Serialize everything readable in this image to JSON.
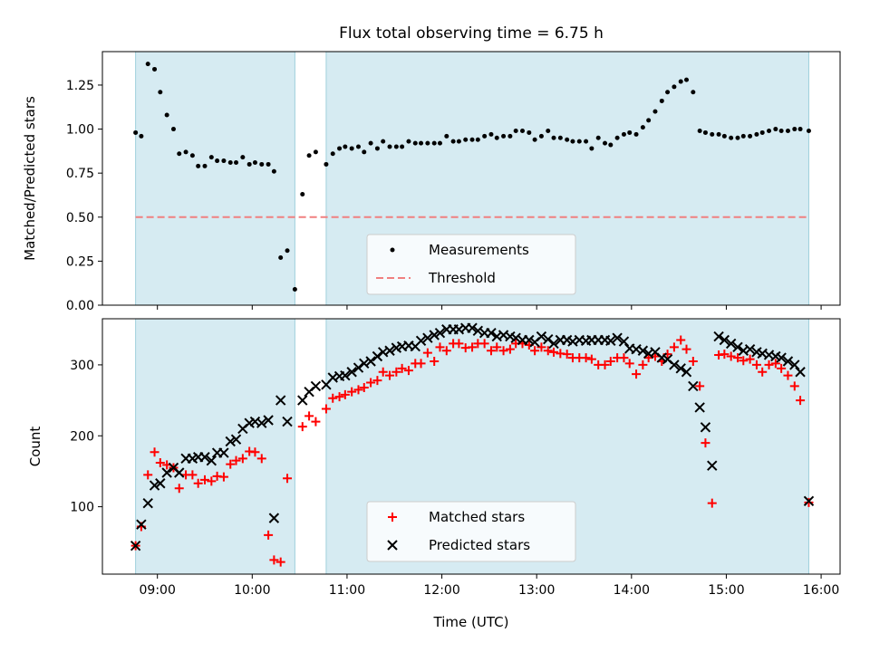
{
  "chart_data": [
    {
      "type": "scatter",
      "title": "Flux total observing time = 6.75 h",
      "xlabel": "",
      "ylabel": "Matched/Predicted stars",
      "xlim": [
        8.42,
        16.2
      ],
      "ylim": [
        0,
        1.44
      ],
      "yticks": [
        0,
        0.25,
        0.5,
        0.75,
        1.0,
        1.25
      ],
      "ytick_labels": [
        "0.00",
        "0.25",
        "0.50",
        "0.75",
        "1.00",
        "1.25"
      ],
      "shaded_ranges": [
        [
          8.77,
          10.45
        ],
        [
          10.78,
          15.87
        ]
      ],
      "shade_color": "#add8e6",
      "legend": [
        "Measurements",
        "Threshold"
      ],
      "legend_loc": "lower center",
      "threshold": 0.5,
      "threshold_color": "#f08080",
      "series": [
        {
          "name": "Measurements",
          "x": [
            8.77,
            8.83,
            8.9,
            8.97,
            9.03,
            9.1,
            9.17,
            9.23,
            9.3,
            9.37,
            9.43,
            9.5,
            9.57,
            9.63,
            9.7,
            9.77,
            9.83,
            9.9,
            9.97,
            10.03,
            10.1,
            10.17,
            10.23,
            10.3,
            10.37,
            10.45,
            10.53,
            10.6,
            10.67,
            10.78,
            10.85,
            10.92,
            10.98,
            11.05,
            11.12,
            11.18,
            11.25,
            11.32,
            11.38,
            11.45,
            11.52,
            11.58,
            11.65,
            11.72,
            11.78,
            11.85,
            11.92,
            11.98,
            12.05,
            12.12,
            12.18,
            12.25,
            12.32,
            12.38,
            12.45,
            12.52,
            12.58,
            12.65,
            12.72,
            12.78,
            12.85,
            12.92,
            12.98,
            13.05,
            13.12,
            13.18,
            13.25,
            13.32,
            13.38,
            13.45,
            13.52,
            13.58,
            13.65,
            13.72,
            13.78,
            13.85,
            13.92,
            13.98,
            14.05,
            14.12,
            14.18,
            14.25,
            14.32,
            14.38,
            14.45,
            14.52,
            14.58,
            14.65,
            14.72,
            14.78,
            14.85,
            14.92,
            14.98,
            15.05,
            15.12,
            15.18,
            15.25,
            15.32,
            15.38,
            15.45,
            15.52,
            15.58,
            15.65,
            15.72,
            15.78,
            15.87
          ],
          "y": [
            0.98,
            0.96,
            1.37,
            1.34,
            1.21,
            1.08,
            1.0,
            0.86,
            0.87,
            0.85,
            0.79,
            0.79,
            0.84,
            0.82,
            0.82,
            0.81,
            0.81,
            0.84,
            0.8,
            0.81,
            0.8,
            0.8,
            0.76,
            0.27,
            0.31,
            0.09,
            0.63,
            0.85,
            0.87,
            0.8,
            0.86,
            0.89,
            0.9,
            0.89,
            0.9,
            0.87,
            0.92,
            0.89,
            0.93,
            0.9,
            0.9,
            0.9,
            0.93,
            0.92,
            0.92,
            0.92,
            0.92,
            0.92,
            0.96,
            0.93,
            0.93,
            0.94,
            0.94,
            0.94,
            0.96,
            0.97,
            0.95,
            0.96,
            0.96,
            0.99,
            0.99,
            0.98,
            0.94,
            0.96,
            0.99,
            0.95,
            0.95,
            0.94,
            0.93,
            0.93,
            0.93,
            0.89,
            0.95,
            0.92,
            0.91,
            0.95,
            0.97,
            0.98,
            0.97,
            1.01,
            1.05,
            1.1,
            1.16,
            1.21,
            1.24,
            1.27,
            1.28,
            1.21,
            0.99,
            0.98,
            0.97,
            0.97,
            0.96,
            0.95,
            0.95,
            0.96,
            0.96,
            0.97,
            0.98,
            0.99,
            1.0,
            0.99,
            0.99,
            1.0,
            1.0,
            0.99
          ]
        }
      ]
    },
    {
      "type": "scatter",
      "title": "",
      "xlabel": "Time (UTC)",
      "ylabel": "Count",
      "xlim": [
        8.42,
        16.2
      ],
      "ylim": [
        5,
        365
      ],
      "yticks": [
        100,
        200,
        300
      ],
      "ytick_labels": [
        "100",
        "200",
        "300"
      ],
      "xticks": [
        9,
        10,
        11,
        12,
        13,
        14,
        15,
        16
      ],
      "xtick_labels": [
        "09:00",
        "10:00",
        "11:00",
        "12:00",
        "13:00",
        "14:00",
        "15:00",
        "16:00"
      ],
      "shaded_ranges": [
        [
          8.77,
          10.45
        ],
        [
          10.78,
          15.87
        ]
      ],
      "legend": [
        "Matched stars",
        "Predicted stars"
      ],
      "legend_loc": "lower center",
      "series": [
        {
          "name": "Matched stars",
          "marker": "plus",
          "color": "#ff0000",
          "x": [
            8.77,
            8.83,
            8.9,
            8.97,
            9.03,
            9.1,
            9.17,
            9.23,
            9.3,
            9.37,
            9.43,
            9.5,
            9.57,
            9.63,
            9.7,
            9.77,
            9.83,
            9.9,
            9.97,
            10.03,
            10.1,
            10.17,
            10.23,
            10.3,
            10.37,
            10.53,
            10.6,
            10.67,
            10.78,
            10.85,
            10.92,
            10.98,
            11.05,
            11.12,
            11.18,
            11.25,
            11.32,
            11.38,
            11.45,
            11.52,
            11.58,
            11.65,
            11.72,
            11.78,
            11.85,
            11.92,
            11.98,
            12.05,
            12.12,
            12.18,
            12.25,
            12.32,
            12.38,
            12.45,
            12.52,
            12.58,
            12.65,
            12.72,
            12.78,
            12.85,
            12.92,
            12.98,
            13.05,
            13.12,
            13.18,
            13.25,
            13.32,
            13.38,
            13.45,
            13.52,
            13.58,
            13.65,
            13.72,
            13.78,
            13.85,
            13.92,
            13.98,
            14.05,
            14.12,
            14.18,
            14.25,
            14.32,
            14.38,
            14.45,
            14.52,
            14.58,
            14.65,
            14.72,
            14.78,
            14.85,
            14.92,
            14.98,
            15.05,
            15.12,
            15.18,
            15.25,
            15.32,
            15.38,
            15.45,
            15.52,
            15.58,
            15.65,
            15.72,
            15.78,
            15.87
          ],
          "y": [
            45,
            72,
            145,
            177,
            162,
            159,
            155,
            126,
            145,
            145,
            133,
            138,
            136,
            143,
            142,
            160,
            165,
            168,
            178,
            177,
            168,
            60,
            25,
            22,
            140,
            213,
            228,
            220,
            238,
            253,
            255,
            258,
            262,
            265,
            268,
            275,
            278,
            290,
            285,
            290,
            295,
            292,
            302,
            302,
            317,
            305,
            325,
            320,
            330,
            330,
            324,
            325,
            330,
            330,
            320,
            325,
            320,
            322,
            330,
            330,
            328,
            320,
            325,
            320,
            318,
            316,
            315,
            310,
            310,
            310,
            308,
            300,
            300,
            305,
            310,
            310,
            302,
            287,
            300,
            310,
            312,
            305,
            315,
            325,
            335,
            322,
            305,
            270,
            190,
            105,
            314,
            315,
            312,
            310,
            306,
            308,
            300,
            290,
            300,
            302,
            295,
            285,
            270,
            250,
            106
          ],
          "y_note": "values read from figure"
        },
        {
          "name": "Predicted stars",
          "marker": "x",
          "color": "#000000",
          "x": [
            8.77,
            8.83,
            8.9,
            8.97,
            9.03,
            9.1,
            9.17,
            9.23,
            9.3,
            9.37,
            9.43,
            9.5,
            9.57,
            9.63,
            9.7,
            9.77,
            9.83,
            9.9,
            9.97,
            10.03,
            10.1,
            10.17,
            10.23,
            10.3,
            10.37,
            10.53,
            10.6,
            10.67,
            10.78,
            10.85,
            10.92,
            10.98,
            11.05,
            11.12,
            11.18,
            11.25,
            11.32,
            11.38,
            11.45,
            11.52,
            11.58,
            11.65,
            11.72,
            11.78,
            11.85,
            11.92,
            11.98,
            12.05,
            12.12,
            12.18,
            12.25,
            12.32,
            12.38,
            12.45,
            12.52,
            12.58,
            12.65,
            12.72,
            12.78,
            12.85,
            12.92,
            12.98,
            13.05,
            13.12,
            13.18,
            13.25,
            13.32,
            13.38,
            13.45,
            13.52,
            13.58,
            13.65,
            13.72,
            13.78,
            13.85,
            13.92,
            13.98,
            14.05,
            14.12,
            14.18,
            14.25,
            14.32,
            14.38,
            14.45,
            14.52,
            14.58,
            14.65,
            14.72,
            14.78,
            14.85,
            14.92,
            14.98,
            15.05,
            15.12,
            15.18,
            15.25,
            15.32,
            15.38,
            15.45,
            15.52,
            15.58,
            15.65,
            15.72,
            15.78,
            15.87
          ],
          "y": [
            45,
            75,
            105,
            130,
            133,
            148,
            155,
            148,
            168,
            168,
            170,
            170,
            165,
            176,
            176,
            192,
            195,
            210,
            218,
            220,
            218,
            222,
            84,
            250,
            220,
            250,
            262,
            270,
            272,
            282,
            284,
            285,
            290,
            296,
            302,
            305,
            312,
            318,
            320,
            324,
            326,
            327,
            326,
            334,
            338,
            342,
            345,
            350,
            350,
            350,
            352,
            352,
            348,
            345,
            345,
            340,
            342,
            340,
            338,
            335,
            335,
            332,
            340,
            336,
            330,
            335,
            335,
            333,
            335,
            334,
            335,
            335,
            335,
            334,
            338,
            333,
            323,
            322,
            320,
            316,
            318,
            310,
            308,
            300,
            295,
            290,
            270,
            240,
            212,
            158,
            340,
            335,
            330,
            325,
            320,
            322,
            318,
            316,
            314,
            312,
            310,
            305,
            300,
            290,
            108
          ]
        }
      ]
    }
  ]
}
